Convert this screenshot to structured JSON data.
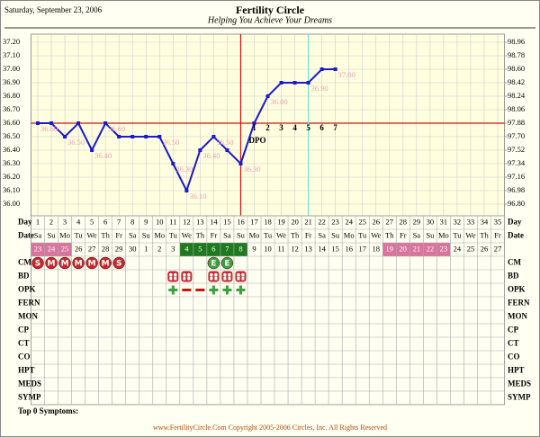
{
  "chart_data": {
    "type": "line",
    "date": "Saturday, September 23, 2006",
    "title": "Fertility Circle",
    "subtitle": "Helping You Achieve Your Dreams",
    "day_label": "Day",
    "date_label": "Date",
    "x": [
      1,
      2,
      3,
      4,
      5,
      6,
      7,
      8,
      9,
      10,
      11,
      12,
      13,
      14,
      15,
      16,
      17,
      18,
      19,
      20,
      21,
      22,
      23,
      24,
      25,
      26,
      27,
      28,
      29,
      30,
      31,
      32,
      33,
      34,
      35
    ],
    "weekdays": [
      "Sa",
      "Su",
      "Mo",
      "Tu",
      "We",
      "Th",
      "Fr",
      "Sa",
      "Su",
      "Mo",
      "Tu",
      "We",
      "Th",
      "Fr",
      "Sa",
      "Su",
      "Mo",
      "Tu",
      "We",
      "Th",
      "Fr",
      "Sa",
      "Su",
      "Mo",
      "Tu",
      "We",
      "Th",
      "Fr",
      "Sa",
      "Su",
      "Mo",
      "Tu",
      "We",
      "Th",
      "Fr"
    ],
    "dates": [
      23,
      24,
      25,
      26,
      27,
      28,
      29,
      30,
      1,
      2,
      3,
      4,
      5,
      6,
      7,
      8,
      9,
      10,
      11,
      12,
      13,
      14,
      15,
      16,
      17,
      18,
      19,
      20,
      21,
      22,
      23,
      24,
      25,
      26,
      27
    ],
    "date_fill": [
      "#d9749c",
      "#d9749c",
      "#d9749c",
      null,
      null,
      null,
      null,
      null,
      null,
      null,
      null,
      "#1f7a1f",
      "#1f7a1f",
      "#1f7a1f",
      "#1f7a1f",
      "#1f7a1f",
      null,
      null,
      null,
      null,
      null,
      null,
      null,
      null,
      null,
      null,
      "#d9749c",
      "#d9749c",
      "#d9749c",
      "#d9749c",
      "#d9749c",
      null,
      null,
      null,
      null
    ],
    "series": [
      {
        "color": "#1a1ad0",
        "values": [
          36.6,
          36.6,
          36.5,
          36.6,
          36.4,
          36.6,
          36.5,
          36.5,
          36.5,
          36.5,
          36.3,
          36.1,
          36.4,
          36.5,
          36.4,
          36.3,
          36.6,
          36.8,
          36.9,
          36.9,
          36.9,
          37.0,
          37.0,
          null,
          null,
          null,
          null,
          null,
          null,
          null,
          null,
          null,
          null,
          null,
          null
        ],
        "value_labels": [
          "36.60",
          null,
          "36.50",
          null,
          "36.40",
          "36.60",
          null,
          null,
          null,
          "36.50",
          "36.30",
          "36.10",
          "36.40",
          "36.50",
          null,
          "36.30",
          null,
          "36.80",
          null,
          null,
          "36.90",
          null,
          "37.00",
          null,
          null,
          null,
          null,
          null,
          null,
          null,
          null,
          null,
          null,
          null,
          null
        ]
      }
    ],
    "ylim": [
      36.0,
      37.2
    ],
    "yticks": [
      {
        "value": 36.0,
        "label": "36.00"
      },
      {
        "value": 36.1,
        "label": "36.10"
      },
      {
        "value": 36.2,
        "label": "36.20"
      },
      {
        "value": 36.3,
        "label": "36.30"
      },
      {
        "value": 36.4,
        "label": "36.40"
      },
      {
        "value": 36.5,
        "label": "36.50"
      },
      {
        "value": 36.6,
        "label": "36.60"
      },
      {
        "value": 36.7,
        "label": "36.70"
      },
      {
        "value": 36.8,
        "label": "36.80"
      },
      {
        "value": 36.9,
        "label": "36.90"
      },
      {
        "value": 37.0,
        "label": "37.00"
      },
      {
        "value": 37.1,
        "label": "37.10"
      },
      {
        "value": 37.2,
        "label": "37.20"
      }
    ],
    "y2lim": [
      96.8,
      98.96
    ],
    "y2ticks": [
      {
        "value": 96.8,
        "label": "96.80"
      },
      96.98,
      97.16,
      97.34,
      97.52,
      {
        "value": 97.7,
        "label": "97.70"
      },
      97.88,
      98.06,
      98.24,
      98.42,
      {
        "value": 98.6,
        "label": "98.60"
      },
      98.78,
      98.96
    ],
    "coverline": 36.6,
    "ovulation_day": 16,
    "marker_day": 21,
    "dpo": [
      null,
      null,
      null,
      null,
      null,
      null,
      null,
      null,
      null,
      null,
      null,
      null,
      null,
      null,
      null,
      null,
      1,
      2,
      3,
      4,
      5,
      6,
      7,
      null,
      null,
      null,
      null,
      null,
      null,
      null,
      null,
      null,
      null,
      null,
      null
    ],
    "dpo_label": "DPO",
    "rows": [
      "CM",
      "BD",
      "OPK",
      "FERN",
      "MON",
      "CP",
      "CT",
      "CO",
      "HPT",
      "MEDS",
      "SYMP"
    ],
    "cm": [
      "S",
      "M",
      "M",
      "M",
      "M",
      "M",
      "S",
      null,
      null,
      null,
      null,
      null,
      null,
      "E",
      "E",
      null,
      null,
      null,
      null,
      null,
      null,
      null,
      null,
      null,
      null,
      null,
      null,
      null,
      null,
      null,
      null,
      null,
      null,
      null,
      null
    ],
    "cm_colors": {
      "S": "#c02a2e",
      "M": "#c02a2e",
      "E": "#3aa040"
    },
    "bd_days": [
      11,
      12,
      14,
      15,
      16
    ],
    "opk_positive_days": [
      11,
      14,
      15,
      16
    ],
    "opk_negative_days": [
      12,
      13
    ],
    "symptoms": "Top 0 Symptoms:",
    "footer": "www.FertilityCircle.Com Copyright 2005-2006 Circles, Inc. All Rights Reserved"
  }
}
